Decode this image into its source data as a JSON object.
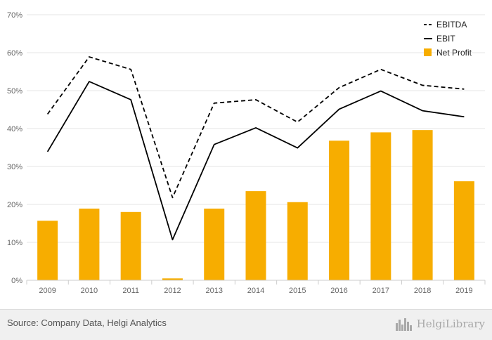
{
  "chart_data": {
    "type": "bar+line",
    "categories": [
      "2009",
      "2010",
      "2011",
      "2012",
      "2013",
      "2014",
      "2015",
      "2016",
      "2017",
      "2018",
      "2019"
    ],
    "ylim": [
      0,
      70
    ],
    "yticks": [
      0,
      10,
      20,
      30,
      40,
      50,
      60,
      70
    ],
    "ytick_labels": [
      "0%",
      "10%",
      "20%",
      "30%",
      "40%",
      "50%",
      "60%",
      "70%"
    ],
    "grid": true,
    "legend_position": "top-right",
    "series": [
      {
        "name": "EBITDA",
        "type": "line",
        "style": "dashed",
        "color": "#000000",
        "values": [
          43.8,
          58.9,
          55.6,
          21.8,
          46.7,
          47.6,
          41.7,
          50.8,
          55.6,
          51.4,
          50.4
        ]
      },
      {
        "name": "EBIT",
        "type": "line",
        "style": "solid",
        "color": "#000000",
        "values": [
          33.9,
          52.4,
          47.6,
          10.7,
          35.8,
          40.2,
          34.9,
          45.1,
          49.9,
          44.7,
          43.1
        ]
      },
      {
        "name": "Net Profit",
        "type": "bar",
        "color": "#f7ad00",
        "values": [
          15.7,
          18.9,
          18.0,
          0.5,
          18.9,
          23.5,
          20.6,
          36.8,
          39.0,
          39.6,
          26.1
        ]
      }
    ]
  },
  "footer": {
    "source": "Source: Company Data, Helgi Analytics",
    "brand": "HelgiLibrary",
    "brand_icon": "city-skyline-icon"
  }
}
